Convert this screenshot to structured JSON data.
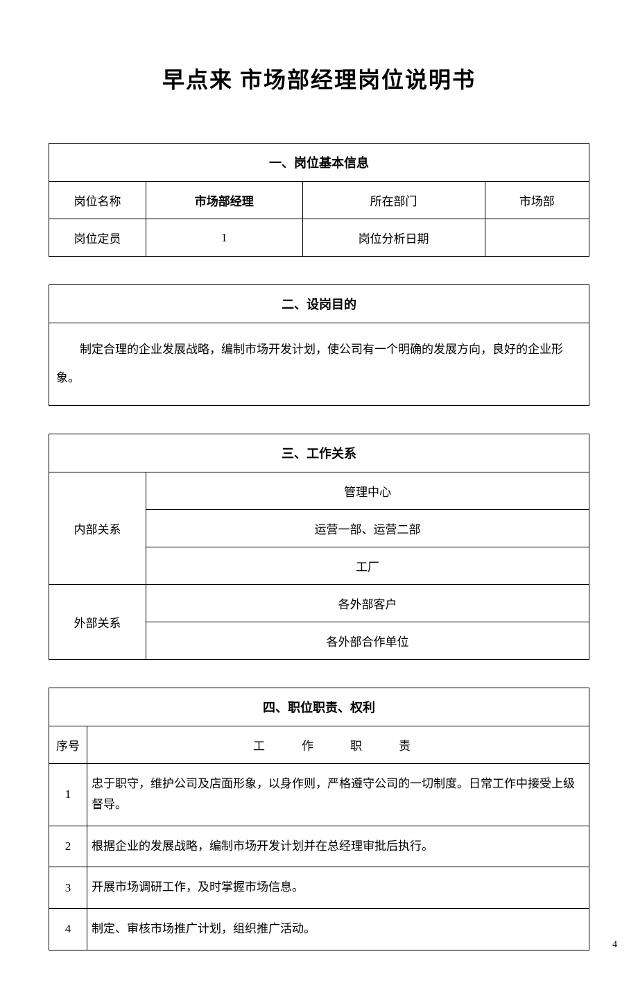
{
  "title": "早点来 市场部经理岗位说明书",
  "page_number": "4",
  "section1": {
    "header": "一、岗位基本信息",
    "rows": [
      {
        "label1": "岗位名称",
        "value1": "市场部经理",
        "label2": "所在部门",
        "value2": "市场部"
      },
      {
        "label1": "岗位定员",
        "value1": "1",
        "label2": "岗位分析日期",
        "value2": ""
      }
    ]
  },
  "section2": {
    "header": "二、设岗目的",
    "body": "制定合理的企业发展战略，编制市场开发计划，使公司有一个明确的发展方向，良好的企业形象。"
  },
  "section3": {
    "header": "三、工作关系",
    "internal_label": "内部关系",
    "internal_items": [
      "管理中心",
      "运营一部、运营二部",
      "工厂"
    ],
    "external_label": "外部关系",
    "external_items": [
      "各外部客户",
      "各外部合作单位"
    ]
  },
  "section4": {
    "header": "四、职位职责、权利",
    "col_seq": "序号",
    "col_duty": "工　作　职　责",
    "duties": [
      {
        "n": "1",
        "text": "忠于职守，维护公司及店面形象，以身作则，严格遵守公司的一切制度。日常工作中接受上级督导。"
      },
      {
        "n": "2",
        "text": "根据企业的发展战略，编制市场开发计划并在总经理审批后执行。"
      },
      {
        "n": "3",
        "text": "开展市场调研工作，及时掌握市场信息。"
      },
      {
        "n": "4",
        "text": "制定、审核市场推广计划，组织推广活动。"
      }
    ]
  }
}
